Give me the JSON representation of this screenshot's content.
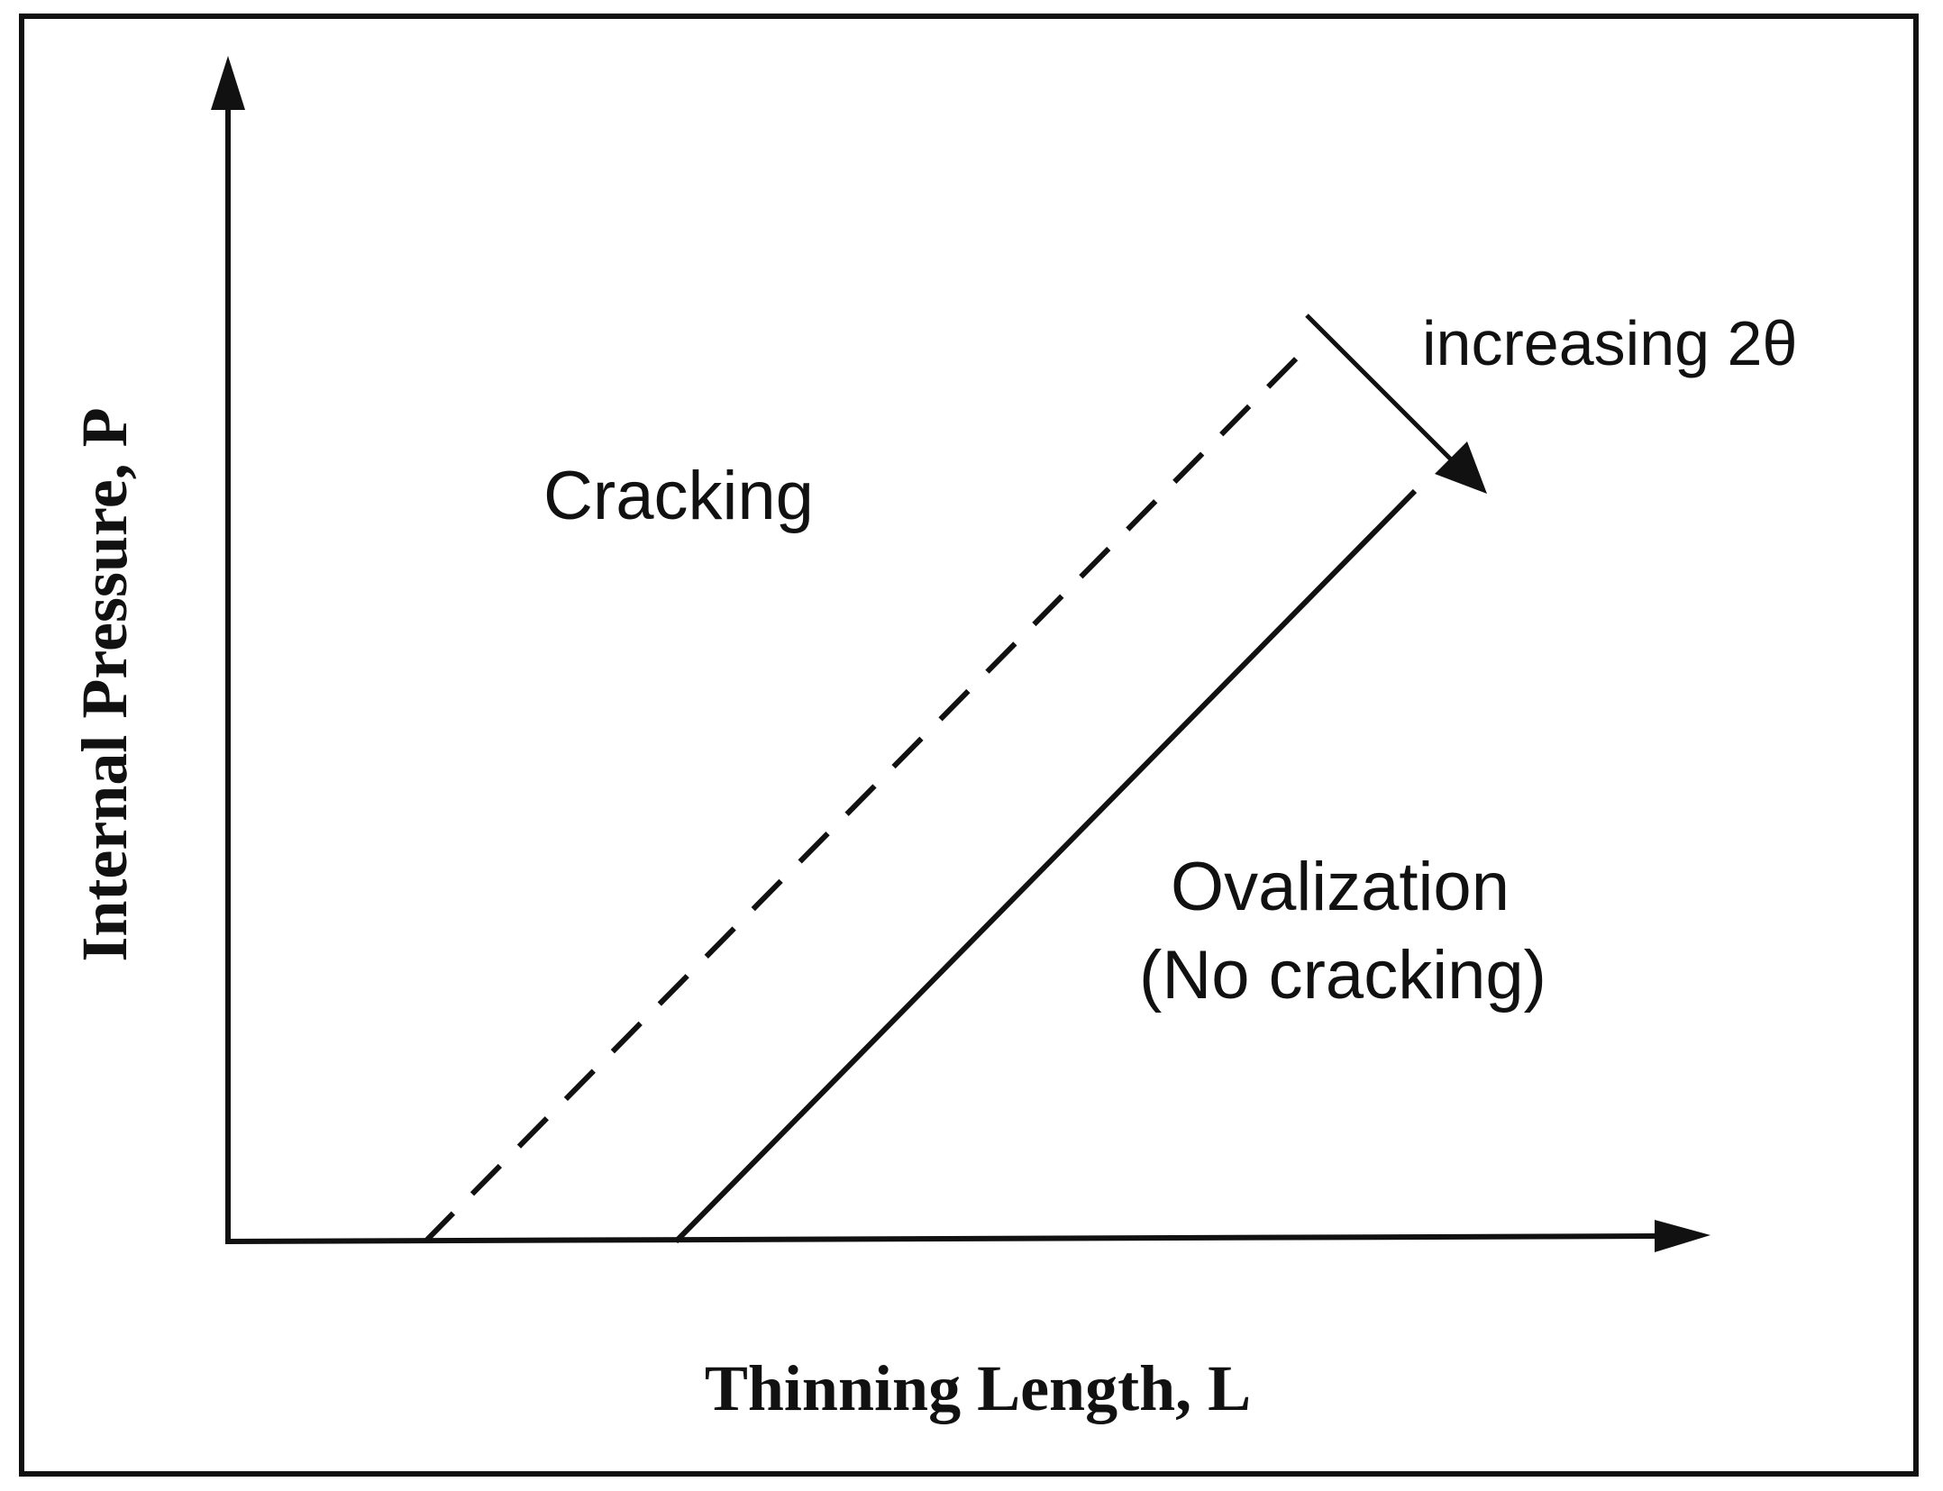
{
  "diagram": {
    "x_axis_label": "Thinning Length, L",
    "y_axis_label": "Internal Pressure, P",
    "regions": {
      "upper": "Cracking",
      "lower_line1": "Ovalization",
      "lower_line2": "(No cracking)"
    },
    "trend_label": "increasing 2θ",
    "colors": {
      "ink": "#111111",
      "background": "#ffffff"
    }
  }
}
